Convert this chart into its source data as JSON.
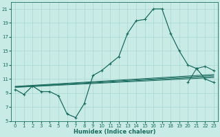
{
  "xlabel": "Humidex (Indice chaleur)",
  "xlim": [
    -0.5,
    23.5
  ],
  "ylim": [
    5,
    22
  ],
  "yticks": [
    5,
    7,
    9,
    11,
    13,
    15,
    17,
    19,
    21
  ],
  "xticks": [
    0,
    1,
    2,
    3,
    4,
    5,
    6,
    7,
    8,
    9,
    10,
    11,
    12,
    13,
    14,
    15,
    16,
    17,
    18,
    19,
    20,
    21,
    22,
    23
  ],
  "bg_color": "#c8ebe6",
  "line_color": "#1a6b5e",
  "grid_color": "#a8d8d0",
  "main_series_x": [
    0,
    1,
    2,
    3,
    4,
    5,
    6,
    7,
    8,
    9,
    10,
    11,
    12,
    13,
    14,
    15,
    16,
    17,
    18,
    19,
    20,
    21,
    22,
    23
  ],
  "main_series_y": [
    9.5,
    8.8,
    10.0,
    9.2,
    9.2,
    8.6,
    6.0,
    5.5,
    7.5,
    11.5,
    12.2,
    13.2,
    14.2,
    17.5,
    19.3,
    19.5,
    21.0,
    21.0,
    17.5,
    15.0,
    13.0,
    12.5,
    11.0,
    10.5
  ],
  "flat_lines": [
    {
      "x": [
        0,
        23
      ],
      "y": [
        9.8,
        11.2
      ]
    },
    {
      "x": [
        0,
        23
      ],
      "y": [
        9.85,
        11.35
      ]
    },
    {
      "x": [
        0,
        23
      ],
      "y": [
        9.9,
        11.5
      ]
    },
    {
      "x": [
        0,
        23
      ],
      "y": [
        9.95,
        11.65
      ]
    }
  ],
  "extra_series_x": [
    20,
    21,
    22,
    23
  ],
  "extra_series_y": [
    10.5,
    12.5,
    12.8,
    12.2
  ],
  "tick_fontsize": 5,
  "xlabel_fontsize": 6
}
